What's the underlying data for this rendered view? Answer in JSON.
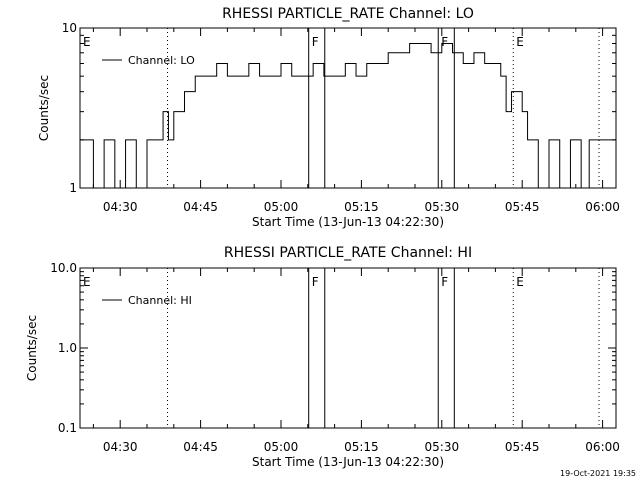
{
  "footer_timestamp": "19-Oct-2021 19:35",
  "chart_data": [
    {
      "type": "line",
      "title": "RHESSI PARTICLE_RATE Channel: LO",
      "xlabel": "Start Time (13-Jun-13 04:22:30)",
      "ylabel": "Counts/sec",
      "y_scale": "log",
      "ylim": [
        1,
        10
      ],
      "xlim": [
        "04:22:30",
        "06:02:30"
      ],
      "x_ticks": [
        "04:30",
        "04:45",
        "05:00",
        "05:15",
        "05:30",
        "05:45",
        "06:00"
      ],
      "y_ticks": [
        "1",
        "10"
      ],
      "legend": "top-left",
      "grid": false,
      "series": [
        {
          "name": "Channel: LO",
          "x": [
            "04:22:30",
            "04:25:00",
            "04:27:00",
            "04:29:00",
            "04:31:00",
            "04:33:00",
            "04:35:00",
            "04:37:00",
            "04:38:00",
            "04:39:00",
            "04:40:00",
            "04:42:00",
            "04:44:00",
            "04:46:00",
            "04:48:00",
            "04:50:00",
            "04:52:00",
            "04:54:00",
            "04:56:00",
            "04:58:00",
            "05:00:00",
            "05:02:00",
            "05:04:00",
            "05:06:00",
            "05:08:00",
            "05:10:00",
            "05:12:00",
            "05:14:00",
            "05:16:00",
            "05:18:00",
            "05:20:00",
            "05:22:00",
            "05:24:00",
            "05:26:00",
            "05:28:00",
            "05:30:00",
            "05:32:00",
            "05:34:00",
            "05:36:00",
            "05:38:00",
            "05:40:00",
            "05:41:00",
            "05:42:00",
            "05:43:00",
            "05:44:00",
            "05:45:00",
            "05:46:00",
            "05:48:00",
            "05:50:00",
            "05:52:00",
            "05:54:00",
            "05:56:00",
            "05:57:30"
          ],
          "y": [
            2,
            1,
            2,
            1,
            2,
            1,
            2,
            2,
            3,
            2,
            3,
            4,
            5,
            5,
            6,
            5,
            5,
            6,
            5,
            5,
            6,
            5,
            5,
            6,
            5,
            5,
            6,
            5,
            6,
            6,
            7,
            7,
            8,
            8,
            7,
            8,
            7,
            6,
            7,
            6,
            6,
            5,
            3,
            4,
            4,
            3,
            2,
            1,
            2,
            1,
            2,
            1,
            2
          ]
        }
      ],
      "markers": [
        {
          "label": "E",
          "time": "04:22:30",
          "style": "dotted"
        },
        {
          "label": "",
          "time": "04:38:50",
          "style": "dotted"
        },
        {
          "label": "F",
          "time": "05:05:10",
          "style": "solid"
        },
        {
          "label": "",
          "time": "05:08:10",
          "style": "solid"
        },
        {
          "label": "F",
          "time": "05:29:20",
          "style": "solid"
        },
        {
          "label": "",
          "time": "05:32:20",
          "style": "solid"
        },
        {
          "label": "E",
          "time": "05:43:20",
          "style": "dotted"
        },
        {
          "label": "",
          "time": "05:59:20",
          "style": "dotted"
        }
      ]
    },
    {
      "type": "line",
      "title": "RHESSI PARTICLE_RATE Channel: HI",
      "xlabel": "Start Time (13-Jun-13 04:22:30)",
      "ylabel": "Counts/sec",
      "y_scale": "log",
      "ylim": [
        0.1,
        10
      ],
      "xlim": [
        "04:22:30",
        "06:02:30"
      ],
      "x_ticks": [
        "04:30",
        "04:45",
        "05:00",
        "05:15",
        "05:30",
        "05:45",
        "06:00"
      ],
      "y_ticks": [
        "0.1",
        "1.0",
        "10.0"
      ],
      "legend": "top-left",
      "grid": false,
      "series": [
        {
          "name": "Channel: HI",
          "x": [],
          "y": []
        }
      ],
      "markers": [
        {
          "label": "E",
          "time": "04:22:30",
          "style": "dotted"
        },
        {
          "label": "",
          "time": "04:38:50",
          "style": "dotted"
        },
        {
          "label": "F",
          "time": "05:05:10",
          "style": "solid"
        },
        {
          "label": "",
          "time": "05:08:10",
          "style": "solid"
        },
        {
          "label": "F",
          "time": "05:29:20",
          "style": "solid"
        },
        {
          "label": "",
          "time": "05:32:20",
          "style": "solid"
        },
        {
          "label": "E",
          "time": "05:43:20",
          "style": "dotted"
        },
        {
          "label": "",
          "time": "05:59:20",
          "style": "dotted"
        }
      ]
    }
  ]
}
